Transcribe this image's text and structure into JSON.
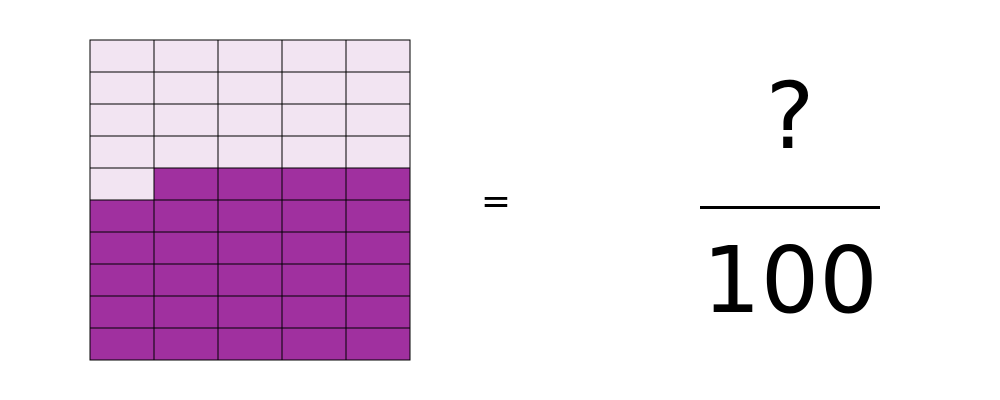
{
  "grid": {
    "rows": 10,
    "columns": 5,
    "unshaded_cells": 21,
    "shaded_cells": 29,
    "colors": {
      "shaded": "#A0309F",
      "unshaded": "#F2E4F2",
      "gridline": "#000000"
    }
  },
  "equation": {
    "equals": "=",
    "numerator": "?",
    "denominator": "100"
  }
}
